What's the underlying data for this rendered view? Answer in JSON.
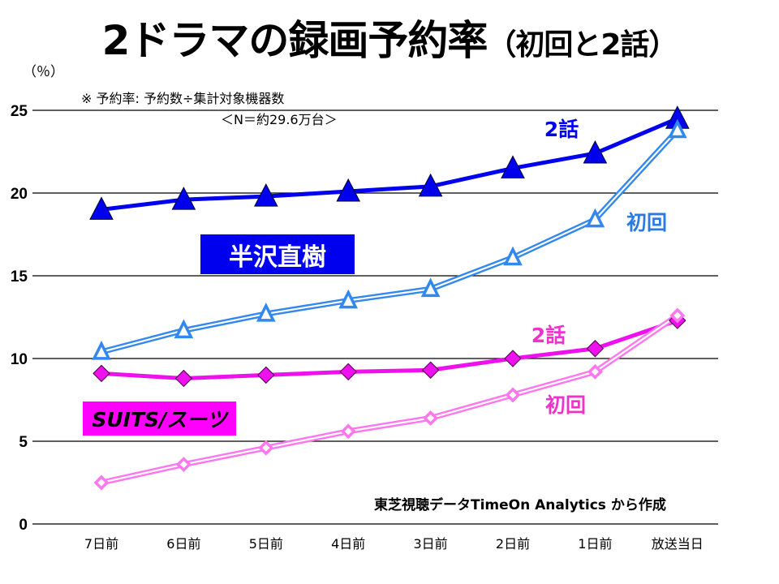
{
  "title": {
    "main": "2ドラマの録画予約率",
    "sub": "（初回と2話）"
  },
  "unit_label": "（％）",
  "notes": {
    "definition": "※ 予約率: 予約数÷集計対象機器数",
    "sample": "＜N＝約29.6万台＞"
  },
  "source": "東芝視聴データTimeOn Analytics から作成",
  "dramas": {
    "hanzawa": {
      "name": "半沢直樹",
      "box_color": "#0000ee",
      "text_color": "#ffffff"
    },
    "suits": {
      "name": "SUITS/スーツ",
      "box_color": "#ff00ff",
      "text_color": "#000000"
    }
  },
  "chart_data": {
    "type": "line",
    "title": "2ドラマの録画予約率（初回と2話）",
    "xlabel": "",
    "ylabel": "（％）",
    "x": [
      "7日前",
      "6日前",
      "5日前",
      "4日前",
      "3日前",
      "2日前",
      "1日前",
      "放送当日"
    ],
    "ylim": [
      0,
      25
    ],
    "yticks": [
      0,
      5,
      10,
      15,
      20,
      25
    ],
    "grid": true,
    "legend": "inline labels",
    "series": [
      {
        "name": "半沢直樹 2話",
        "label": "2話",
        "drama": "hanzawa",
        "color": "#0000ee",
        "marker": "triangle-filled",
        "style": "solid",
        "values": [
          19.0,
          19.6,
          19.8,
          20.1,
          20.4,
          21.5,
          22.4,
          24.5
        ]
      },
      {
        "name": "半沢直樹 初回",
        "label": "初回",
        "drama": "hanzawa",
        "color": "#3388ee",
        "marker": "triangle-open",
        "style": "double",
        "values": [
          10.4,
          11.7,
          12.7,
          13.5,
          14.2,
          16.1,
          18.4,
          23.8
        ]
      },
      {
        "name": "SUITS/スーツ 2話",
        "label": "2話",
        "drama": "suits",
        "color": "#ee11ee",
        "marker": "diamond-filled",
        "style": "solid",
        "values": [
          9.1,
          8.8,
          9.0,
          9.2,
          9.3,
          10.0,
          10.6,
          12.3
        ]
      },
      {
        "name": "SUITS/スーツ 初回",
        "label": "初回",
        "drama": "suits",
        "color": "#ff77ee",
        "marker": "diamond-open",
        "style": "double",
        "values": [
          2.5,
          3.6,
          4.6,
          5.6,
          6.4,
          7.8,
          9.2,
          12.6
        ]
      }
    ],
    "series_label_colors": [
      "#0000ee",
      "#2a7ae0",
      "#ee33cc",
      "#ee33cc"
    ]
  }
}
